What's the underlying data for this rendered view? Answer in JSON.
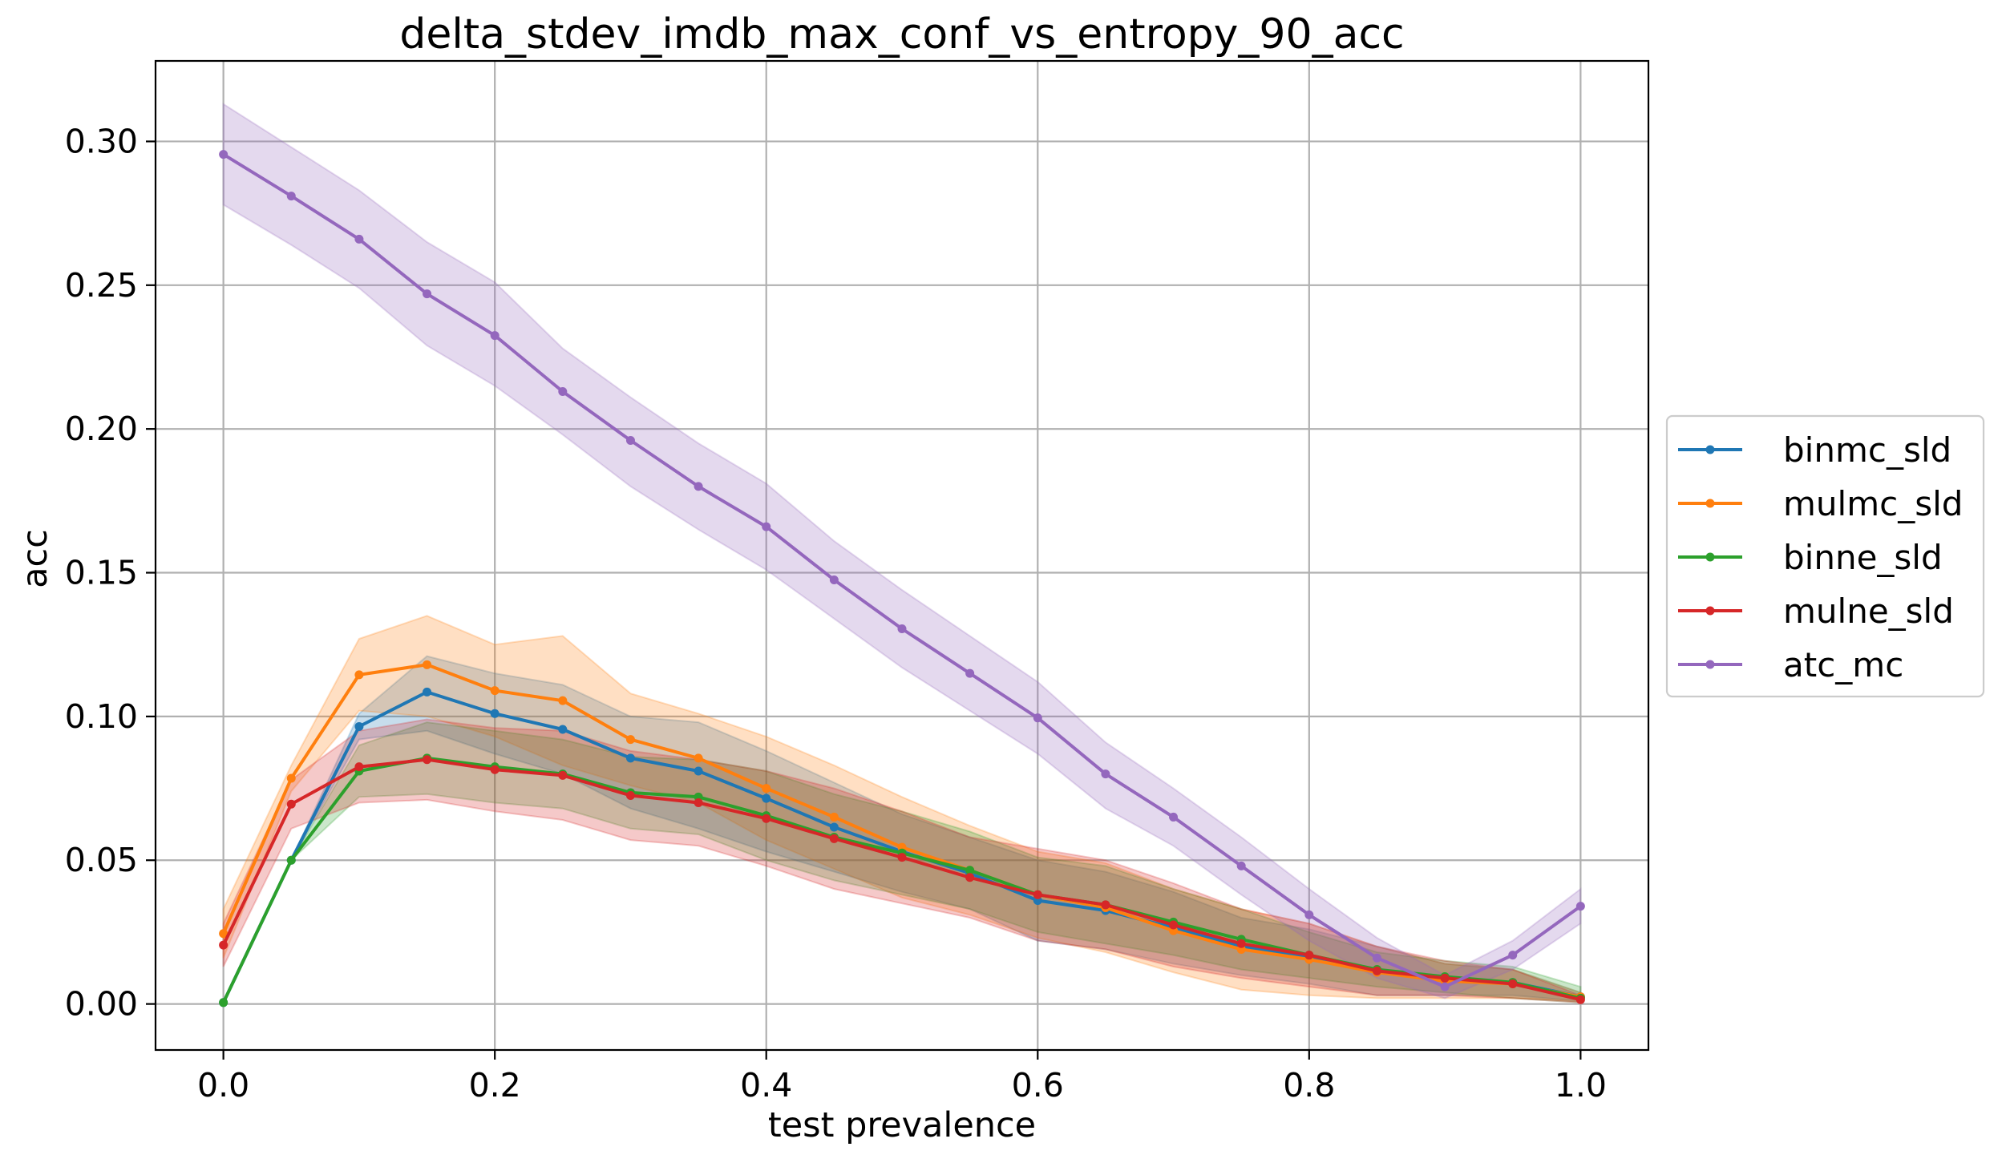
{
  "chart_data": {
    "type": "line",
    "title": "delta_stdev_imdb_max_conf_vs_entropy_90_acc",
    "xlabel": "test prevalence",
    "ylabel": "acc",
    "xlim": [
      -0.05,
      1.05
    ],
    "ylim": [
      -0.016,
      0.328
    ],
    "grid": true,
    "legend_position": "right, outside plot",
    "x": [
      0.0,
      0.05,
      0.1,
      0.15,
      0.2,
      0.25,
      0.3,
      0.35,
      0.4,
      0.45,
      0.5,
      0.55,
      0.6,
      0.65,
      0.7,
      0.75,
      0.8,
      0.85,
      0.9,
      0.95,
      1.0
    ],
    "x_ticks": [
      {
        "value": 0.0,
        "label": "0.0"
      },
      {
        "value": 0.2,
        "label": "0.2"
      },
      {
        "value": 0.4,
        "label": "0.4"
      },
      {
        "value": 0.6,
        "label": "0.6"
      },
      {
        "value": 0.8,
        "label": "0.8"
      },
      {
        "value": 1.0,
        "label": "1.0"
      }
    ],
    "y_ticks": [
      {
        "value": 0.0,
        "label": "0.00"
      },
      {
        "value": 0.05,
        "label": "0.05"
      },
      {
        "value": 0.1,
        "label": "0.10"
      },
      {
        "value": 0.15,
        "label": "0.15"
      },
      {
        "value": 0.2,
        "label": "0.20"
      },
      {
        "value": 0.25,
        "label": "0.25"
      },
      {
        "value": 0.3,
        "label": "0.30"
      }
    ],
    "series": [
      {
        "name": "binmc_sld",
        "color": "#1f77b4",
        "values": [
          0.0005,
          0.05,
          0.0965,
          0.1085,
          0.101,
          0.0955,
          0.0855,
          0.081,
          0.0715,
          0.0615,
          0.053,
          0.0455,
          0.036,
          0.0325,
          0.0265,
          0.02,
          0.0165,
          0.0115,
          0.0085,
          0.0075,
          0.0025
        ],
        "lower": [
          0.0005,
          0.05,
          0.092,
          0.095,
          0.087,
          0.08,
          0.068,
          0.061,
          0.053,
          0.046,
          0.039,
          0.033,
          0.022,
          0.019,
          0.014,
          0.01,
          0.007,
          0.003,
          0.003,
          0.003,
          0.001
        ],
        "upper": [
          0.0005,
          0.05,
          0.101,
          0.121,
          0.115,
          0.111,
          0.1,
          0.098,
          0.088,
          0.077,
          0.066,
          0.058,
          0.05,
          0.046,
          0.039,
          0.03,
          0.026,
          0.02,
          0.014,
          0.012,
          0.004
        ]
      },
      {
        "name": "mulmc_sld",
        "color": "#ff7f0e",
        "values": [
          0.0245,
          0.0785,
          0.1145,
          0.118,
          0.109,
          0.1055,
          0.092,
          0.0855,
          0.075,
          0.065,
          0.0545,
          0.0465,
          0.038,
          0.0335,
          0.0255,
          0.019,
          0.0155,
          0.011,
          0.008,
          0.007,
          0.0025
        ],
        "lower": [
          0.016,
          0.074,
          0.102,
          0.1,
          0.093,
          0.083,
          0.076,
          0.07,
          0.057,
          0.047,
          0.037,
          0.031,
          0.023,
          0.018,
          0.011,
          0.005,
          0.003,
          0.002,
          0.002,
          0.002,
          0.001
        ],
        "upper": [
          0.033,
          0.083,
          0.127,
          0.135,
          0.125,
          0.128,
          0.108,
          0.101,
          0.093,
          0.083,
          0.072,
          0.062,
          0.053,
          0.049,
          0.04,
          0.033,
          0.028,
          0.02,
          0.014,
          0.012,
          0.004
        ]
      },
      {
        "name": "binne_sld",
        "color": "#2ca02c",
        "values": [
          0.0005,
          0.05,
          0.081,
          0.0855,
          0.0825,
          0.08,
          0.0735,
          0.072,
          0.0655,
          0.058,
          0.0525,
          0.0465,
          0.038,
          0.0345,
          0.0285,
          0.0225,
          0.017,
          0.012,
          0.0095,
          0.0075,
          0.002
        ],
        "lower": [
          0.0005,
          0.05,
          0.072,
          0.073,
          0.07,
          0.068,
          0.061,
          0.059,
          0.05,
          0.043,
          0.038,
          0.033,
          0.025,
          0.021,
          0.017,
          0.012,
          0.009,
          0.006,
          0.004,
          0.002,
          0.0005
        ],
        "upper": [
          0.0005,
          0.05,
          0.09,
          0.098,
          0.095,
          0.092,
          0.086,
          0.085,
          0.081,
          0.073,
          0.067,
          0.06,
          0.051,
          0.048,
          0.04,
          0.033,
          0.025,
          0.018,
          0.015,
          0.013,
          0.006
        ]
      },
      {
        "name": "mulne_sld",
        "color": "#d62728",
        "values": [
          0.0205,
          0.0695,
          0.0825,
          0.085,
          0.0815,
          0.0795,
          0.0725,
          0.07,
          0.0645,
          0.0575,
          0.051,
          0.044,
          0.038,
          0.0345,
          0.0275,
          0.021,
          0.017,
          0.0115,
          0.009,
          0.007,
          0.0015
        ],
        "lower": [
          0.013,
          0.061,
          0.07,
          0.071,
          0.067,
          0.064,
          0.057,
          0.055,
          0.048,
          0.04,
          0.035,
          0.03,
          0.022,
          0.019,
          0.013,
          0.009,
          0.006,
          0.003,
          0.003,
          0.002,
          0.0005
        ],
        "upper": [
          0.028,
          0.078,
          0.095,
          0.099,
          0.096,
          0.095,
          0.088,
          0.085,
          0.081,
          0.075,
          0.067,
          0.058,
          0.054,
          0.05,
          0.042,
          0.033,
          0.028,
          0.02,
          0.015,
          0.012,
          0.003
        ]
      },
      {
        "name": "atc_mc",
        "color": "#9467bd",
        "values": [
          0.2955,
          0.281,
          0.266,
          0.247,
          0.2325,
          0.213,
          0.196,
          0.18,
          0.166,
          0.1475,
          0.1305,
          0.115,
          0.0995,
          0.08,
          0.065,
          0.048,
          0.031,
          0.016,
          0.006,
          0.017,
          0.034
        ],
        "lower": [
          0.278,
          0.264,
          0.249,
          0.229,
          0.215,
          0.198,
          0.18,
          0.165,
          0.151,
          0.134,
          0.117,
          0.102,
          0.087,
          0.068,
          0.055,
          0.038,
          0.022,
          0.009,
          0.002,
          0.012,
          0.028
        ],
        "upper": [
          0.313,
          0.298,
          0.283,
          0.265,
          0.251,
          0.228,
          0.211,
          0.195,
          0.181,
          0.161,
          0.144,
          0.128,
          0.112,
          0.091,
          0.075,
          0.058,
          0.04,
          0.023,
          0.01,
          0.022,
          0.04
        ]
      }
    ]
  }
}
